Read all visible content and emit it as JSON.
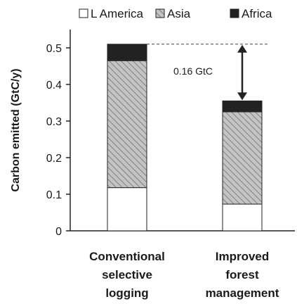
{
  "chart_data": {
    "type": "bar",
    "stacked": true,
    "categories": [
      [
        "Conventional",
        "selective",
        "logging"
      ],
      [
        "Improved",
        "forest",
        "management"
      ]
    ],
    "series": [
      {
        "name": "L America",
        "values": [
          0.118,
          0.073
        ],
        "color": "#ffffff",
        "pattern": "none"
      },
      {
        "name": "Asia",
        "values": [
          0.347,
          0.252
        ],
        "color": "#b8b8b8",
        "pattern": "diagonal-hatch"
      },
      {
        "name": "Africa",
        "values": [
          0.045,
          0.03
        ],
        "color": "#222222",
        "pattern": "solid"
      }
    ],
    "ylabel": "Carbon emitted (GtC/y)",
    "xlabel": "",
    "ylim": [
      0,
      0.55
    ],
    "yticks": [
      0,
      0.1,
      0.2,
      0.3,
      0.4,
      0.5
    ],
    "legend_position": "top",
    "grid": false,
    "annotation": {
      "text": "0.16 GtC",
      "from_value": 0.51,
      "to_value": 0.355,
      "style": "double-arrow with dashed reference line"
    }
  }
}
